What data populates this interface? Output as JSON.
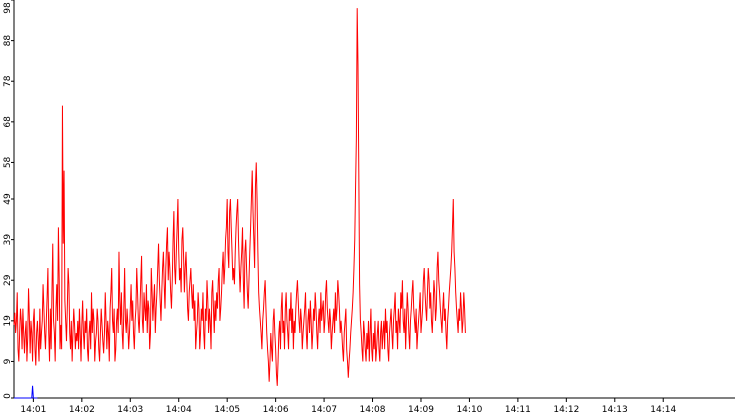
{
  "chart_data": {
    "type": "line",
    "title": "",
    "xlabel": "",
    "ylabel": "",
    "ylim": [
      0,
      98
    ],
    "x_tick_labels": [
      "14:01",
      "14:02",
      "14:03",
      "14:04",
      "14:05",
      "14:06",
      "14:07",
      "14:08",
      "14:09",
      "14:10",
      "14:11",
      "14:12",
      "14:13",
      "14:14"
    ],
    "y_tick_labels": [
      "0",
      "9",
      "19",
      "29",
      "39",
      "49",
      "58",
      "68",
      "78",
      "88",
      "98"
    ],
    "grid": false,
    "legend": "none",
    "colors": {
      "series_main": "#ff0000",
      "series_secondary": "#0000ff",
      "axis": "#000000",
      "background": "#ffffff"
    },
    "series": [
      {
        "color": "#ff0000",
        "x_start": "14:00:36",
        "step_seconds": 1,
        "values": [
          18,
          21,
          16,
          19,
          26,
          12,
          9,
          16,
          22,
          19,
          12,
          22,
          16,
          11,
          16,
          19,
          9,
          15,
          27,
          20,
          11,
          19,
          16,
          9,
          19,
          22,
          12,
          8,
          16,
          19,
          14,
          9,
          22,
          12,
          16,
          19,
          28,
          22,
          16,
          12,
          19,
          25,
          32,
          16,
          9,
          22,
          12,
          26,
          38,
          19,
          16,
          9,
          22,
          28,
          19,
          42,
          29,
          12,
          18,
          12,
          72,
          38,
          56,
          24,
          19,
          14,
          22,
          32,
          28,
          16,
          12,
          19,
          9,
          16,
          22,
          18,
          12,
          16,
          14,
          19,
          12,
          22,
          16,
          9,
          18,
          24,
          16,
          12,
          19,
          16,
          22,
          12,
          9,
          16,
          19,
          12,
          26,
          16,
          22,
          19,
          9,
          14,
          16,
          22,
          19,
          12,
          9,
          16,
          22,
          18,
          14,
          11,
          16,
          26,
          19,
          12,
          19,
          16,
          9,
          22,
          26,
          32,
          19,
          16,
          22,
          9,
          12,
          19,
          22,
          16,
          36,
          24,
          18,
          26,
          16,
          12,
          22,
          32,
          19,
          16,
          22,
          18,
          12,
          16,
          22,
          28,
          19,
          24,
          16,
          12,
          19,
          22,
          32,
          26,
          19,
          16,
          22,
          29,
          35,
          19,
          16,
          26,
          22,
          19,
          28,
          16,
          24,
          22,
          12,
          16,
          32,
          26,
          19,
          24,
          28,
          16,
          22,
          26,
          32,
          38,
          29,
          24,
          19,
          26,
          32,
          36,
          28,
          22,
          32,
          38,
          42,
          29,
          36,
          32,
          26,
          22,
          29,
          39,
          46,
          32,
          28,
          36,
          42,
          49,
          36,
          29,
          32,
          26,
          39,
          42,
          35,
          26,
          32,
          36,
          29,
          22,
          19,
          26,
          29,
          32,
          26,
          22,
          28,
          19,
          24,
          12,
          16,
          19,
          26,
          22,
          12,
          16,
          22,
          19,
          26,
          16,
          12,
          22,
          19,
          29,
          24,
          16,
          22,
          19,
          12,
          26,
          29,
          22,
          16,
          24,
          19,
          26,
          22,
          29,
          32,
          19,
          22,
          26,
          32,
          36,
          28,
          32,
          39,
          42,
          49,
          36,
          32,
          46,
          49,
          42,
          36,
          29,
          32,
          28,
          36,
          42,
          46,
          49,
          39,
          32,
          26,
          32,
          36,
          42,
          29,
          22,
          36,
          39,
          32,
          26,
          22,
          29,
          36,
          42,
          49,
          56,
          46,
          39,
          32,
          52,
          58,
          49,
          36,
          26,
          22,
          19,
          16,
          12,
          19,
          22,
          26,
          29,
          22,
          16,
          12,
          9,
          4,
          9,
          16,
          12,
          9,
          19,
          22,
          16,
          12,
          6,
          3,
          9,
          16,
          19,
          12,
          22,
          26,
          16,
          19,
          12,
          22,
          26,
          19,
          16,
          12,
          22,
          19,
          26,
          16,
          22,
          12,
          19,
          16,
          22,
          26,
          29,
          24,
          19,
          16,
          22,
          19,
          12,
          16,
          19,
          22,
          26,
          16,
          12,
          19,
          22,
          16,
          24,
          19,
          12,
          16,
          22,
          19,
          26,
          22,
          16,
          12,
          19,
          22,
          16,
          26,
          19,
          22,
          24,
          16,
          19,
          26,
          29,
          22,
          19,
          16,
          22,
          19,
          12,
          16,
          19,
          22,
          16,
          26,
          19,
          22,
          29,
          26,
          22,
          16,
          19,
          16,
          12,
          9,
          16,
          19,
          22,
          12,
          9,
          5,
          9,
          12,
          16,
          19,
          22,
          26,
          32,
          39,
          52,
          64,
          96,
          82,
          56,
          28,
          19,
          16,
          12,
          9,
          19,
          16,
          12,
          9,
          16,
          12,
          19,
          9,
          16,
          22,
          12,
          9,
          16,
          12,
          19,
          9,
          12,
          16,
          19,
          12,
          9,
          16,
          19,
          12,
          16,
          19,
          12,
          22,
          16,
          19,
          12,
          9,
          16,
          19,
          22,
          16,
          12,
          19,
          22,
          26,
          16,
          19,
          12,
          22,
          19,
          16,
          26,
          22,
          29,
          19,
          16,
          22,
          12,
          19,
          26,
          22,
          16,
          12,
          19,
          22,
          26,
          29,
          22,
          19,
          16,
          22,
          12,
          16,
          19,
          22,
          26,
          16,
          19,
          22,
          29,
          32,
          26,
          22,
          19,
          26,
          32,
          29,
          22,
          26,
          19,
          16,
          22,
          29,
          26,
          19,
          22,
          32,
          36,
          29,
          26,
          22,
          19,
          16,
          22,
          26,
          19,
          22,
          16,
          12,
          19,
          22,
          26,
          29,
          32,
          36,
          42,
          49,
          36,
          32,
          26,
          22,
          19,
          16,
          22,
          19,
          26,
          22,
          16,
          19,
          26,
          22,
          16
        ]
      },
      {
        "color": "#0000ff",
        "x_start": "14:00:36",
        "step_seconds": 1,
        "values": [
          0,
          0,
          0,
          0,
          0,
          0,
          0,
          0,
          0,
          0,
          0,
          0,
          0,
          0,
          0,
          0,
          0,
          0,
          0,
          0,
          0,
          0,
          0,
          3,
          0,
          0,
          0,
          0,
          0,
          0
        ]
      }
    ]
  }
}
